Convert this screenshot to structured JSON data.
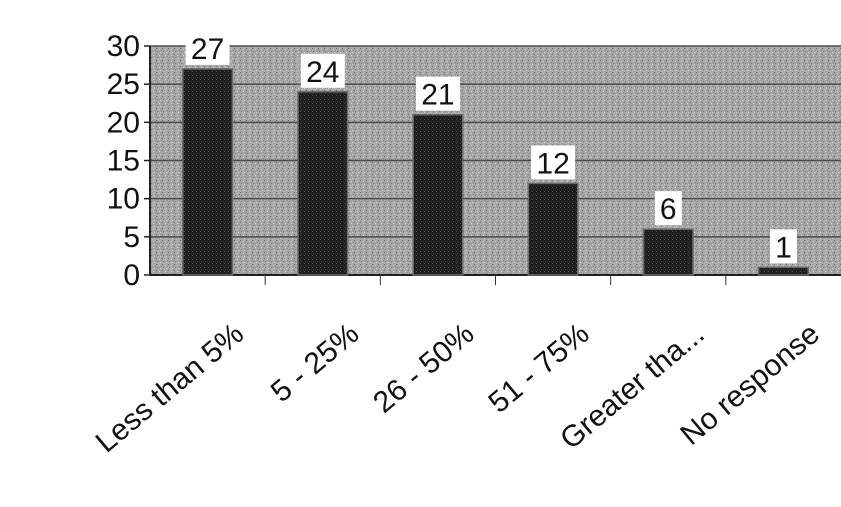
{
  "chart_data": {
    "type": "bar",
    "categories": [
      "Less than 5%",
      "5 - 25%",
      "26 - 50%",
      "51 - 75%",
      "Greater tha...",
      "No response"
    ],
    "values": [
      27,
      24,
      21,
      12,
      6,
      1
    ],
    "data_labels": [
      "27",
      "24",
      "21",
      "12",
      "6",
      "1"
    ],
    "ylim": [
      0,
      30
    ],
    "yticks": [
      0,
      5,
      10,
      15,
      20,
      25,
      30
    ],
    "ytick_labels": [
      "0",
      "5",
      "10",
      "15",
      "20",
      "25",
      "30"
    ],
    "grid": true,
    "title": "",
    "xlabel": "",
    "ylabel": "",
    "colors": {
      "bar": "#1c1c1c",
      "plot_background": "#a8a8a8",
      "gridline": "#4a4a4a"
    }
  }
}
